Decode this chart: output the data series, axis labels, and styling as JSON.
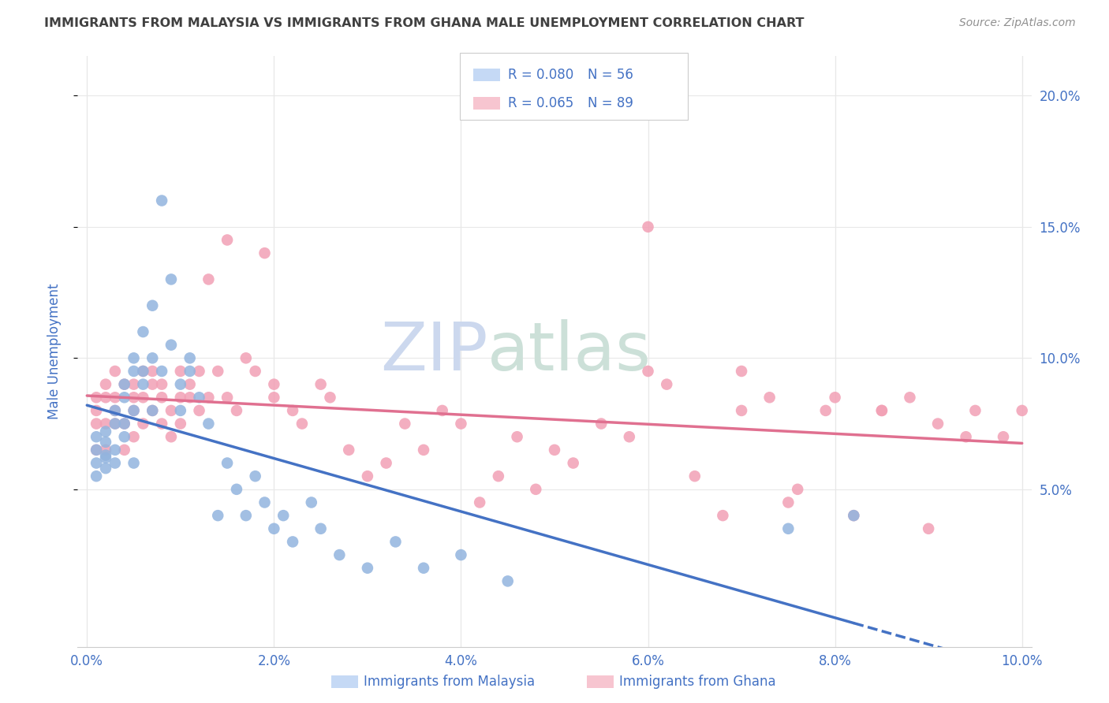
{
  "title": "IMMIGRANTS FROM MALAYSIA VS IMMIGRANTS FROM GHANA MALE UNEMPLOYMENT CORRELATION CHART",
  "source": "Source: ZipAtlas.com",
  "ylabel": "Male Unemployment",
  "x_tick_labels": [
    "0.0%",
    "",
    "2.0%",
    "",
    "4.0%",
    "",
    "6.0%",
    "",
    "8.0%",
    "",
    "10.0%"
  ],
  "x_ticks": [
    0.0,
    0.01,
    0.02,
    0.03,
    0.04,
    0.05,
    0.06,
    0.07,
    0.08,
    0.09,
    0.1
  ],
  "x_tick_labels_show": [
    "0.0%",
    "2.0%",
    "4.0%",
    "6.0%",
    "8.0%",
    "10.0%"
  ],
  "x_ticks_show": [
    0.0,
    0.02,
    0.04,
    0.06,
    0.08,
    0.1
  ],
  "y_tick_labels": [
    "5.0%",
    "10.0%",
    "15.0%",
    "20.0%"
  ],
  "y_ticks": [
    0.05,
    0.1,
    0.15,
    0.2
  ],
  "xlim": [
    -0.001,
    0.101
  ],
  "ylim": [
    -0.01,
    0.215
  ],
  "malaysia_R": 0.08,
  "malaysia_N": 56,
  "ghana_R": 0.065,
  "ghana_N": 89,
  "malaysia_color": "#92b4de",
  "ghana_color": "#f2a0b5",
  "malaysia_line_color": "#4472c4",
  "ghana_line_color": "#e07090",
  "legend_box_malaysia_fill": "#c5d9f5",
  "legend_box_ghana_fill": "#f7c5d0",
  "legend_text_color": "#4472c4",
  "title_color": "#404040",
  "source_color": "#909090",
  "axis_label_color": "#4472c4",
  "background_color": "#ffffff",
  "grid_color": "#e8e8e8",
  "watermark_zip_color": "#ccd8ee",
  "watermark_atlas_color": "#cce0d8",
  "malaysia_x": [
    0.001,
    0.001,
    0.001,
    0.001,
    0.002,
    0.002,
    0.002,
    0.002,
    0.002,
    0.003,
    0.003,
    0.003,
    0.003,
    0.004,
    0.004,
    0.004,
    0.004,
    0.005,
    0.005,
    0.005,
    0.005,
    0.006,
    0.006,
    0.006,
    0.007,
    0.007,
    0.007,
    0.008,
    0.008,
    0.009,
    0.009,
    0.01,
    0.01,
    0.011,
    0.011,
    0.012,
    0.013,
    0.014,
    0.015,
    0.016,
    0.017,
    0.018,
    0.019,
    0.02,
    0.021,
    0.022,
    0.024,
    0.025,
    0.027,
    0.03,
    0.033,
    0.036,
    0.04,
    0.045,
    0.075,
    0.082
  ],
  "malaysia_y": [
    0.07,
    0.065,
    0.06,
    0.055,
    0.068,
    0.062,
    0.058,
    0.072,
    0.063,
    0.06,
    0.075,
    0.065,
    0.08,
    0.07,
    0.09,
    0.085,
    0.075,
    0.06,
    0.095,
    0.08,
    0.1,
    0.095,
    0.11,
    0.09,
    0.08,
    0.1,
    0.12,
    0.16,
    0.095,
    0.13,
    0.105,
    0.09,
    0.08,
    0.095,
    0.1,
    0.085,
    0.075,
    0.04,
    0.06,
    0.05,
    0.04,
    0.055,
    0.045,
    0.035,
    0.04,
    0.03,
    0.045,
    0.035,
    0.025,
    0.02,
    0.03,
    0.02,
    0.025,
    0.015,
    0.035,
    0.04
  ],
  "ghana_x": [
    0.001,
    0.001,
    0.001,
    0.001,
    0.002,
    0.002,
    0.002,
    0.002,
    0.003,
    0.003,
    0.003,
    0.003,
    0.004,
    0.004,
    0.004,
    0.005,
    0.005,
    0.005,
    0.005,
    0.006,
    0.006,
    0.006,
    0.007,
    0.007,
    0.007,
    0.008,
    0.008,
    0.008,
    0.009,
    0.009,
    0.01,
    0.01,
    0.01,
    0.011,
    0.011,
    0.012,
    0.012,
    0.013,
    0.013,
    0.014,
    0.015,
    0.015,
    0.016,
    0.017,
    0.018,
    0.019,
    0.02,
    0.02,
    0.022,
    0.023,
    0.025,
    0.026,
    0.028,
    0.03,
    0.032,
    0.034,
    0.036,
    0.038,
    0.04,
    0.042,
    0.044,
    0.046,
    0.048,
    0.05,
    0.052,
    0.055,
    0.058,
    0.06,
    0.062,
    0.065,
    0.068,
    0.07,
    0.073,
    0.076,
    0.079,
    0.082,
    0.085,
    0.088,
    0.091,
    0.094,
    0.06,
    0.07,
    0.075,
    0.08,
    0.085,
    0.09,
    0.095,
    0.098,
    0.1
  ],
  "ghana_y": [
    0.085,
    0.075,
    0.065,
    0.08,
    0.09,
    0.075,
    0.065,
    0.085,
    0.08,
    0.075,
    0.095,
    0.085,
    0.09,
    0.075,
    0.065,
    0.085,
    0.08,
    0.07,
    0.09,
    0.085,
    0.075,
    0.095,
    0.09,
    0.08,
    0.095,
    0.085,
    0.075,
    0.09,
    0.08,
    0.07,
    0.085,
    0.095,
    0.075,
    0.085,
    0.09,
    0.08,
    0.095,
    0.085,
    0.13,
    0.095,
    0.085,
    0.145,
    0.08,
    0.1,
    0.095,
    0.14,
    0.09,
    0.085,
    0.08,
    0.075,
    0.09,
    0.085,
    0.065,
    0.055,
    0.06,
    0.075,
    0.065,
    0.08,
    0.075,
    0.045,
    0.055,
    0.07,
    0.05,
    0.065,
    0.06,
    0.075,
    0.07,
    0.095,
    0.09,
    0.055,
    0.04,
    0.08,
    0.085,
    0.05,
    0.08,
    0.04,
    0.08,
    0.085,
    0.075,
    0.07,
    0.15,
    0.095,
    0.045,
    0.085,
    0.08,
    0.035,
    0.08,
    0.07,
    0.08
  ]
}
